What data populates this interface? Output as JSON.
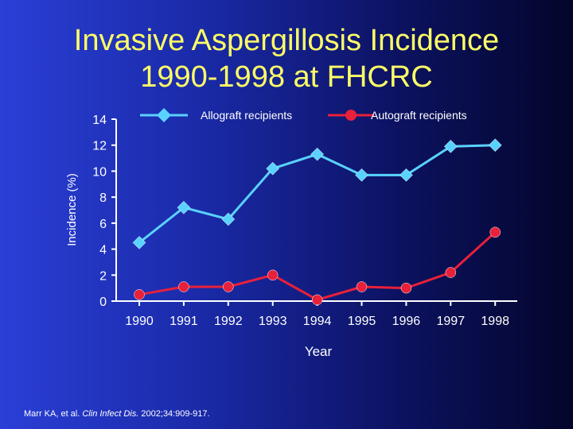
{
  "title": {
    "line1": "Invasive Aspergillosis Incidence",
    "line2": "1990-1998 at FHCRC"
  },
  "chart_data": {
    "type": "line",
    "title": "Invasive Aspergillosis Incidence 1990-1998 at FHCRC",
    "xlabel": "Year",
    "ylabel": "Incidence (%)",
    "categories": [
      "1990",
      "1991",
      "1992",
      "1993",
      "1994",
      "1995",
      "1996",
      "1997",
      "1998"
    ],
    "yticks": [
      "0",
      "2",
      "4",
      "6",
      "8",
      "10",
      "12",
      "14"
    ],
    "ylim": [
      0,
      14
    ],
    "legend_position": "top",
    "series": [
      {
        "name": "Allograft recipients",
        "color": "#5ad2ff",
        "marker": "diamond",
        "values": [
          4.5,
          7.2,
          6.3,
          10.2,
          11.3,
          9.7,
          9.7,
          11.9,
          12.0
        ]
      },
      {
        "name": "Autograft recipients",
        "color": "#e8203a",
        "marker": "circle",
        "values": [
          0.5,
          1.1,
          1.1,
          2.0,
          0.1,
          1.1,
          1.0,
          2.2,
          5.3
        ]
      }
    ]
  },
  "citation": {
    "prefix": "Marr KA, et al. ",
    "journal": "Clin Infect Dis.",
    "suffix": " 2002;34:909-917."
  }
}
